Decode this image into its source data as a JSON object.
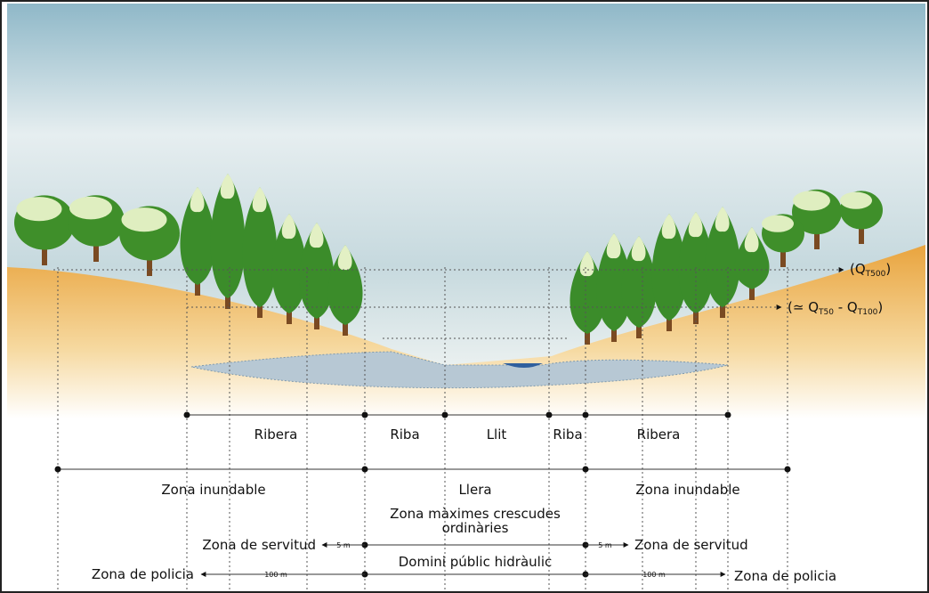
{
  "flood_levels": [
    [
      "(Q",
      "T500",
      ")"
    ],
    [
      "(≃ Q",
      "T50",
      " - Q",
      "T100",
      ")"
    ]
  ],
  "bank_row": [
    "Ribera",
    "Riba",
    "Llit",
    "Riba",
    "Ribera"
  ],
  "zone_row": [
    "Zona inundable",
    "Llera",
    "Zona inundable"
  ],
  "llera_note": [
    "Zona màximes crescudes",
    "ordinàries"
  ],
  "servitud": {
    "left_label": "Zona de servitud",
    "left_distance": "5 m",
    "right_distance": "5 m",
    "right_label": "Zona de servitud"
  },
  "domini": "Domini públic hidràulic",
  "policia": {
    "left_label": "Zona de policia",
    "left_distance": "100 m",
    "right_distance": "100 m",
    "right_label": "Zona de policia"
  }
}
